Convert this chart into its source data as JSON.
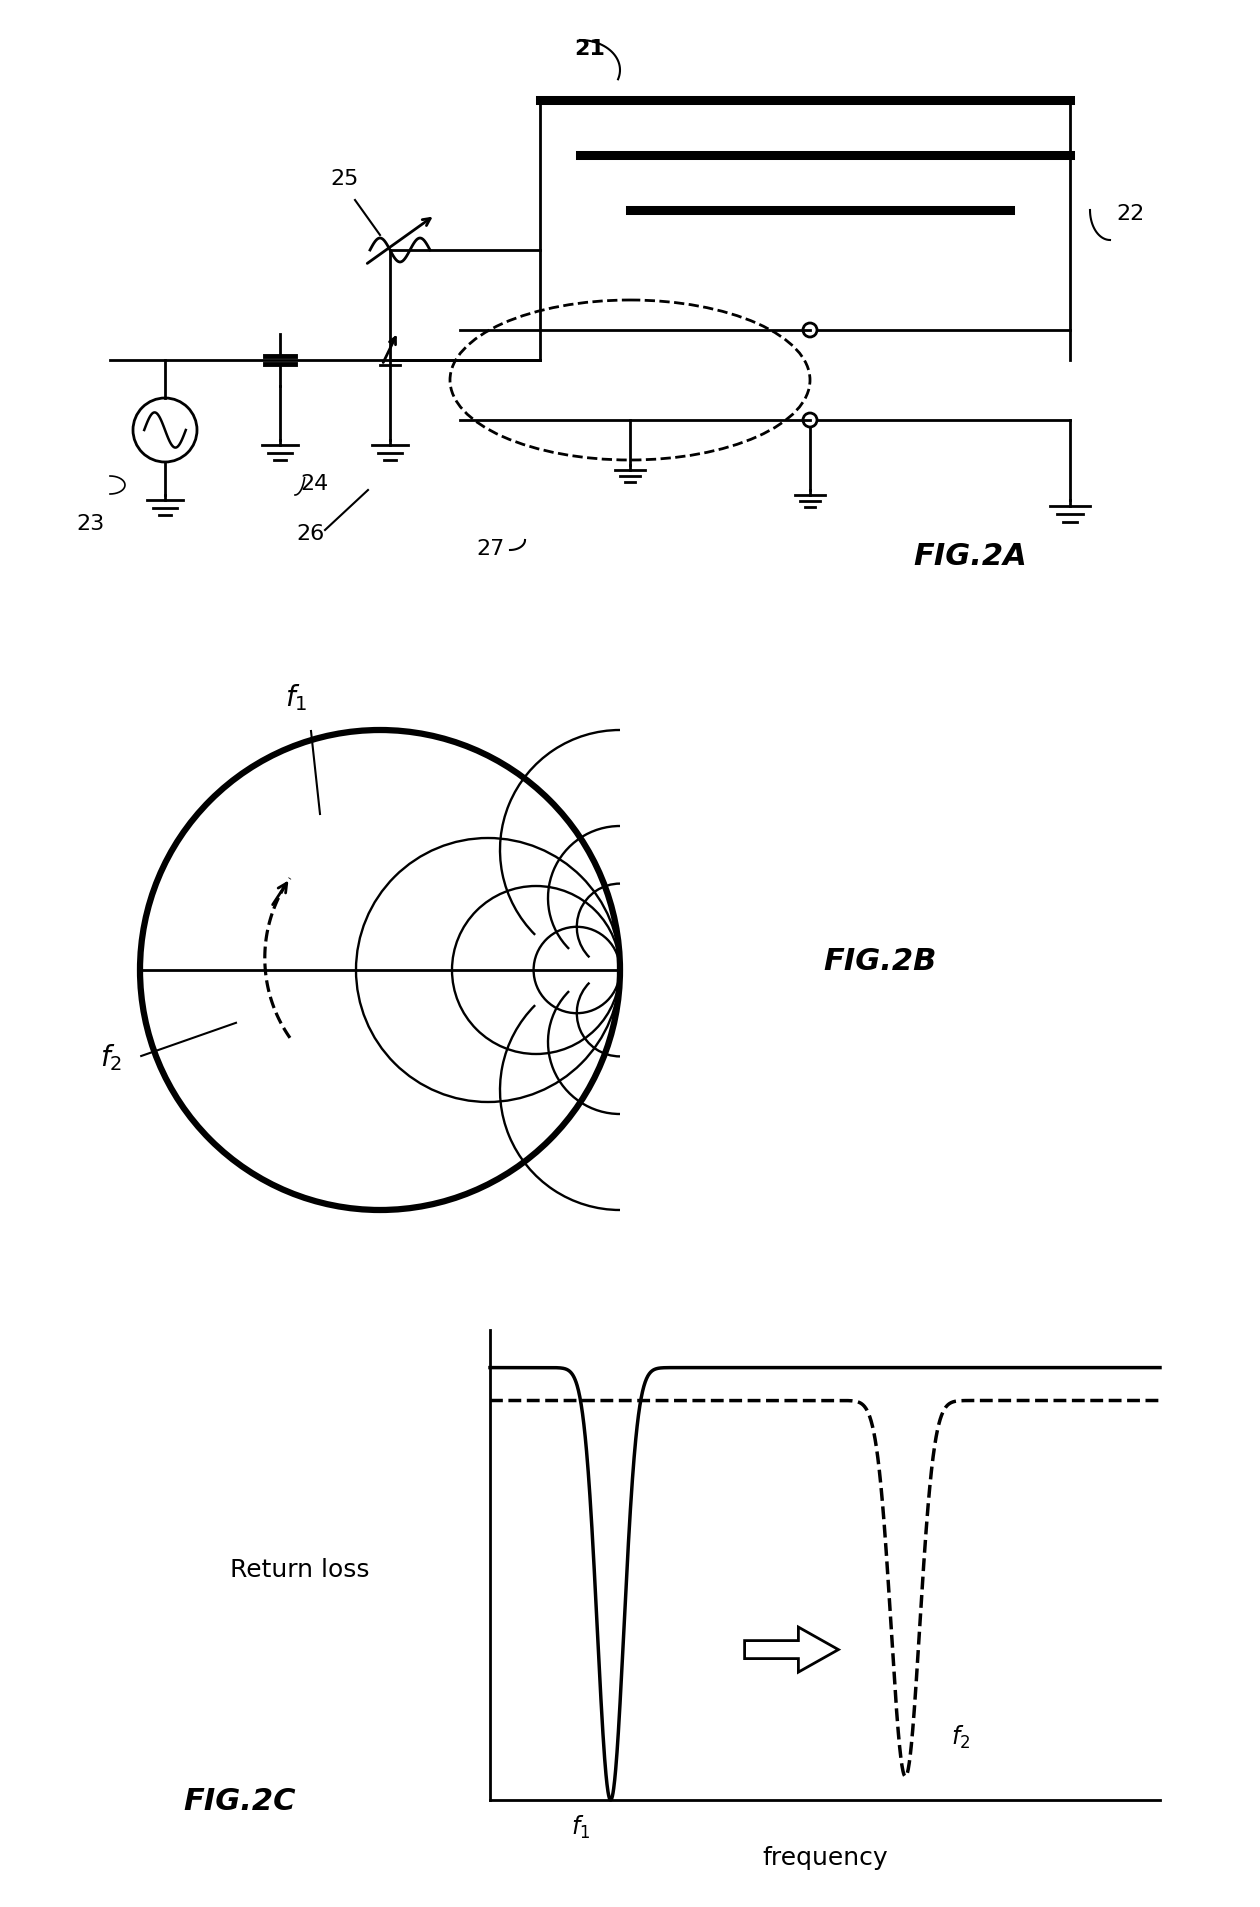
{
  "bg_color": "#ffffff",
  "fig_width": 12.4,
  "fig_height": 18.87,
  "fig2a_label": "FIG.2A",
  "fig2b_label": "FIG.2B",
  "fig2c_label": "FIG.2C"
}
